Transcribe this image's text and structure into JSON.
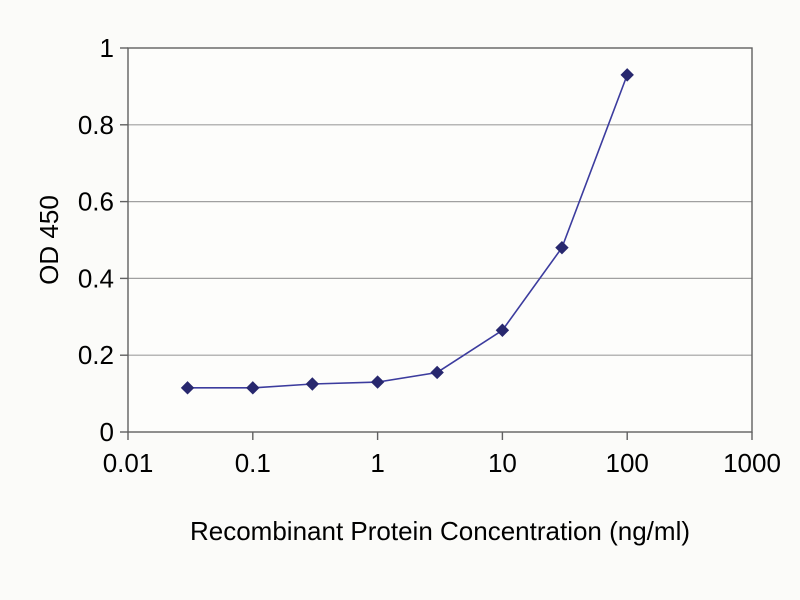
{
  "chart_data": {
    "type": "line",
    "title": "",
    "xlabel": "Recombinant Protein Concentration (ng/ml)",
    "ylabel": "OD 450",
    "x_scale": "log",
    "y_scale": "linear",
    "xlim": [
      0.01,
      1000
    ],
    "ylim": [
      0,
      1
    ],
    "x_ticks": [
      0.01,
      0.1,
      1,
      10,
      100,
      1000
    ],
    "x_tick_labels": [
      "0.01",
      "0.1",
      "1",
      "10",
      "100",
      "1000"
    ],
    "y_ticks": [
      0,
      0.2,
      0.4,
      0.6,
      0.8,
      1
    ],
    "y_tick_labels": [
      "0",
      "0.2",
      "0.4",
      "0.6",
      "0.8",
      "1"
    ],
    "grid": "horizontal-only",
    "legend": "none",
    "series": [
      {
        "name": "OD 450",
        "marker": "diamond",
        "x": [
          0.03,
          0.1,
          0.3,
          1,
          3,
          10,
          30,
          100
        ],
        "y": [
          0.115,
          0.115,
          0.125,
          0.13,
          0.155,
          0.265,
          0.48,
          0.93
        ]
      }
    ],
    "colors": {
      "line": "#3c3c9e",
      "marker": "#28286e",
      "grid": "#a0a0a0",
      "axis": "#606060",
      "text": "#000000",
      "plot_background": "#fdfdfb"
    }
  }
}
